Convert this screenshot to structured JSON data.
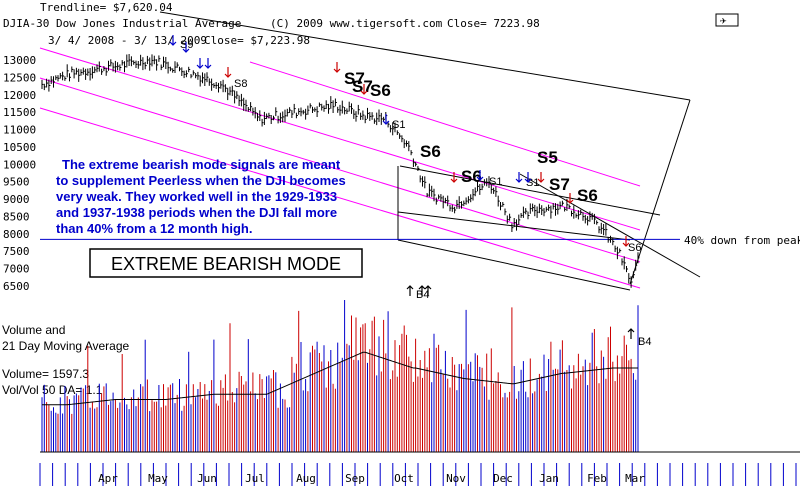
{
  "header": {
    "trendline": "Trendline= $7,620.04",
    "ticker": "DJIA-30  Dow Jones Industrial Average",
    "copyright": "(C) 2009 www.tigersoft.com",
    "close": "Close=  7223.98",
    "range": "3/ 4/ 2008 - 3/ 13/ 2009",
    "close2": "Close= $7,223.98",
    "logo": "✈"
  },
  "annotation_lines": [
    "The extreme bearish mode signals are meant",
    "to supplement Peerless when the DJI becomes",
    "very weak.  They worked well in the 1929-1933",
    "and 1937-1938 periods when the DJI fall more",
    "than 40% from a 12 month high."
  ],
  "mode_box": "EXTREME BEARISH MODE",
  "forty_pct_label": "40% down from peak",
  "volume_panel": {
    "title1": "Volume and",
    "title2": "21 Day Moving Average",
    "volume": "Volume= 1597.3",
    "volratio": "Vol/Vol 50 DA= 1.1"
  },
  "colors": {
    "price": "#000000",
    "channel": "#ff00ff",
    "forty_line": "#0000cc",
    "vol_up": "#0000cc",
    "vol_down": "#cc0000",
    "annotation": "#0000cc"
  },
  "signals": [
    {
      "label": "S7",
      "big": true
    },
    {
      "label": "S7",
      "big": true
    },
    {
      "label": "S6",
      "big": true
    },
    {
      "label": "S6",
      "big": true
    },
    {
      "label": "S6",
      "big": true
    },
    {
      "label": "S5",
      "big": true
    },
    {
      "label": "S7",
      "big": true
    },
    {
      "label": "S6",
      "big": true
    },
    {
      "label": "S8",
      "big": false
    },
    {
      "label": "S1",
      "big": false
    },
    {
      "label": "S1",
      "big": false
    },
    {
      "label": "S1",
      "big": false
    },
    {
      "label": "S9",
      "big": false
    },
    {
      "label": "S6",
      "big": false
    },
    {
      "label": "B4",
      "big": false
    },
    {
      "label": "B4",
      "big": false
    }
  ],
  "chart_data": {
    "type": "line",
    "y_ticks": [
      "13000",
      "12500",
      "12000",
      "11500",
      "11000",
      "10500",
      "10000",
      "9500",
      "9000",
      "8500",
      "8000",
      "7500",
      "7000",
      "6500"
    ],
    "ylim": [
      6500,
      13000
    ],
    "x_ticks": [
      "Apr",
      "May",
      "Jun",
      "Jul",
      "Aug",
      "Sep",
      "Oct",
      "Nov",
      "Dec",
      "Jan",
      "Feb",
      "Mar"
    ],
    "forty_pct_level": 7840,
    "series": [
      {
        "name": "DJIA-30",
        "monthly_close_approx": [
          12300,
          12800,
          12600,
          11400,
          11500,
          11400,
          9300,
          8600,
          8800,
          8200,
          7200,
          7224
        ]
      }
    ],
    "volume_approx_relative": [
      0.45,
      0.5,
      0.5,
      0.55,
      0.55,
      0.75,
      0.95,
      0.8,
      0.7,
      0.65,
      0.75,
      0.8
    ]
  }
}
